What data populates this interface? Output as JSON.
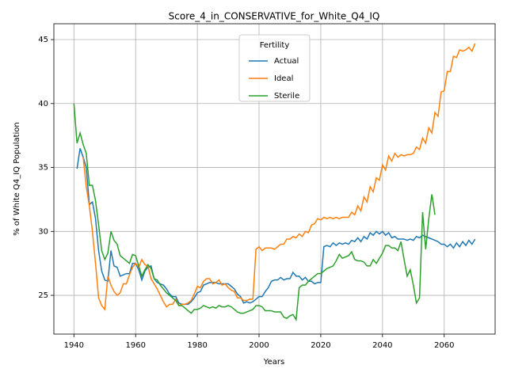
{
  "chart_data": {
    "type": "line",
    "title": "Score_4_in_CONSERVATIVE_for_White_Q4_IQ",
    "xlabel": "Years",
    "ylabel": "% of White Q4_IQ Population",
    "legend_title": "Fertility",
    "legend": "upper center",
    "grid": true,
    "xlim": [
      1933.5,
      2076.5
    ],
    "ylim": [
      21.97,
      46.24
    ],
    "xticks": [
      1940,
      1960,
      1980,
      2000,
      2020,
      2040,
      2060
    ],
    "yticks": [
      25,
      30,
      35,
      40,
      45
    ],
    "x": [
      1940,
      1941,
      1942,
      1943,
      1944,
      1945,
      1946,
      1947,
      1948,
      1949,
      1950,
      1951,
      1952,
      1953,
      1954,
      1955,
      1956,
      1957,
      1958,
      1959,
      1960,
      1961,
      1962,
      1963,
      1964,
      1965,
      1966,
      1967,
      1968,
      1969,
      1970,
      1971,
      1972,
      1973,
      1974,
      1975,
      1976,
      1977,
      1978,
      1979,
      1980,
      1981,
      1982,
      1983,
      1984,
      1985,
      1986,
      1987,
      1988,
      1989,
      1990,
      1991,
      1992,
      1993,
      1994,
      1995,
      1996,
      1997,
      1998,
      1999,
      2000,
      2001,
      2002,
      2003,
      2004,
      2005,
      2006,
      2007,
      2008,
      2009,
      2010,
      2011,
      2012,
      2013,
      2014,
      2015,
      2016,
      2017,
      2018,
      2019,
      2020,
      2021,
      2022,
      2023,
      2024,
      2025,
      2026,
      2027,
      2028,
      2029,
      2030,
      2031,
      2032,
      2033,
      2034,
      2035,
      2036,
      2037,
      2038,
      2039,
      2040,
      2041,
      2042,
      2043,
      2044,
      2045,
      2046,
      2047,
      2048,
      2049,
      2050,
      2051,
      2052,
      2053,
      2054,
      2055,
      2056,
      2057,
      2058,
      2059,
      2060,
      2061,
      2062,
      2063,
      2064,
      2065,
      2066,
      2067,
      2068,
      2069,
      2070
    ],
    "series": [
      {
        "name": "Actual",
        "color": "#1f77b4",
        "values": [
          null,
          34.9,
          36.5,
          35.8,
          35.0,
          32.1,
          32.3,
          31.0,
          28.5,
          26.9,
          26.2,
          26.1,
          28.5,
          27.3,
          27.2,
          26.5,
          26.6,
          26.7,
          26.7,
          27.5,
          27.5,
          27.0,
          26.2,
          26.9,
          27.2,
          27.3,
          26.3,
          26.0,
          25.9,
          25.8,
          25.5,
          25.1,
          24.9,
          24.9,
          24.4,
          24.3,
          24.3,
          24.3,
          24.5,
          24.8,
          25.2,
          25.3,
          25.8,
          25.9,
          26.0,
          26.0,
          26.0,
          25.9,
          25.9,
          25.9,
          25.9,
          25.7,
          25.5,
          25.1,
          24.9,
          24.4,
          24.5,
          24.4,
          24.5,
          24.7,
          24.9,
          24.9,
          25.3,
          25.6,
          26.1,
          26.2,
          26.2,
          26.4,
          26.2,
          26.3,
          26.3,
          26.8,
          26.5,
          26.5,
          26.2,
          26.4,
          26.1,
          26.1,
          25.9,
          26.0,
          26.0,
          28.8,
          28.9,
          28.8,
          29.1,
          28.9,
          29.1,
          29.0,
          29.1,
          29.0,
          29.3,
          29.2,
          29.5,
          29.2,
          29.6,
          29.4,
          29.9,
          29.7,
          30.0,
          29.8,
          30.0,
          29.7,
          29.9,
          29.5,
          29.6,
          29.4,
          29.4,
          29.4,
          29.3,
          29.4,
          29.3,
          29.6,
          29.5,
          29.7,
          29.6,
          29.5,
          29.4,
          29.3,
          29.2,
          29.0,
          29.0,
          28.8,
          29.0,
          28.7,
          29.1,
          28.8,
          29.2,
          28.9,
          29.3,
          29.0,
          29.4
        ]
      },
      {
        "name": "Ideal",
        "color": "#ff7f0e",
        "values": [
          null,
          null,
          null,
          35.8,
          33.5,
          32.0,
          30.0,
          27.5,
          24.8,
          24.2,
          23.9,
          26.5,
          25.8,
          25.3,
          25.0,
          25.2,
          25.9,
          25.9,
          26.6,
          27.2,
          27.5,
          27.2,
          27.8,
          27.4,
          27.3,
          26.3,
          25.9,
          25.5,
          25.0,
          24.5,
          24.1,
          24.3,
          24.3,
          24.7,
          24.2,
          24.3,
          24.3,
          24.4,
          24.6,
          25.1,
          25.7,
          25.6,
          26.1,
          26.3,
          26.3,
          25.9,
          26.0,
          26.2,
          25.8,
          25.9,
          25.6,
          25.4,
          25.3,
          24.8,
          24.8,
          24.6,
          24.6,
          24.7,
          24.7,
          28.6,
          28.8,
          28.5,
          28.7,
          28.7,
          28.7,
          28.6,
          28.8,
          29.0,
          29.0,
          29.4,
          29.4,
          29.6,
          29.5,
          29.8,
          29.6,
          30.0,
          29.9,
          30.5,
          30.6,
          31.0,
          30.9,
          31.1,
          31.0,
          31.1,
          31.0,
          31.1,
          31.0,
          31.1,
          31.1,
          31.1,
          31.5,
          31.3,
          32.0,
          31.6,
          32.7,
          32.3,
          33.5,
          33.1,
          34.2,
          34.0,
          35.2,
          34.8,
          35.9,
          35.5,
          36.1,
          35.8,
          36.0,
          35.9,
          36.0,
          36.0,
          36.1,
          36.6,
          36.4,
          37.3,
          36.9,
          38.1,
          37.7,
          39.3,
          39.0,
          40.9,
          41.0,
          42.5,
          42.5,
          43.7,
          43.6,
          44.2,
          44.1,
          44.2,
          44.4,
          44.1,
          44.7
        ]
      },
      {
        "name": "Sterile",
        "color": "#2ca02c",
        "values": [
          40.0,
          36.9,
          37.7,
          36.8,
          36.1,
          33.6,
          33.6,
          32.4,
          30.5,
          28.5,
          27.8,
          28.3,
          30.0,
          29.3,
          29.0,
          28.1,
          27.9,
          27.7,
          27.5,
          28.2,
          28.1,
          27.3,
          26.5,
          27.0,
          27.4,
          27.1,
          26.3,
          26.2,
          25.8,
          25.5,
          25.2,
          25.0,
          24.8,
          24.6,
          24.2,
          24.2,
          24.0,
          23.8,
          23.6,
          23.9,
          23.9,
          24.0,
          24.2,
          24.1,
          24.0,
          24.1,
          24.0,
          24.2,
          24.1,
          24.1,
          24.2,
          24.1,
          23.9,
          23.7,
          23.6,
          23.6,
          23.7,
          23.8,
          23.9,
          24.2,
          24.2,
          24.1,
          23.8,
          23.8,
          23.8,
          23.7,
          23.7,
          23.7,
          23.3,
          23.2,
          23.4,
          23.5,
          23.1,
          25.6,
          25.8,
          25.8,
          26.1,
          26.3,
          26.5,
          26.7,
          26.7,
          26.9,
          27.1,
          27.2,
          27.3,
          27.7,
          28.2,
          27.9,
          28.0,
          28.1,
          28.4,
          27.8,
          27.7,
          27.7,
          27.6,
          27.3,
          27.3,
          27.8,
          27.5,
          27.9,
          28.3,
          28.9,
          28.9,
          28.7,
          28.7,
          28.5,
          29.2,
          27.8,
          26.5,
          27.0,
          25.8,
          24.4,
          24.8,
          31.5,
          28.6,
          31.0,
          32.9,
          31.3,
          null,
          null,
          null,
          null,
          null,
          null,
          null,
          null,
          null,
          null,
          null,
          null,
          null
        ]
      }
    ]
  }
}
